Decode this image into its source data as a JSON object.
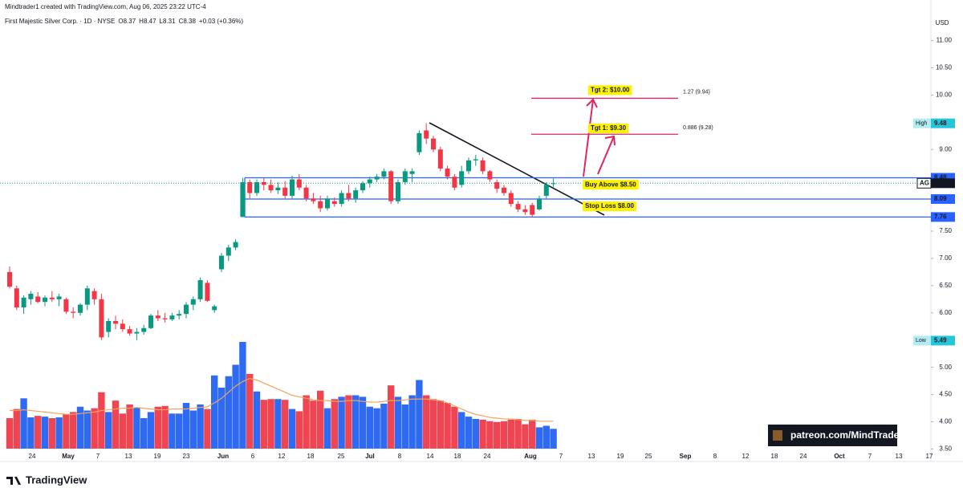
{
  "chart_data": {
    "type": "candlestick",
    "header": "Mindtrader1 created with TradingView.com, Aug 06, 2025 23:22 UTC-4",
    "symbol": "First Majestic Silver Corp. · 1D · NYSE",
    "ohlc_labels": [
      "O",
      "H",
      "L",
      "C"
    ],
    "ohlc": [
      8.37,
      8.47,
      8.31,
      8.38
    ],
    "change": "+0.03 (+0.36%)",
    "currency": "USD",
    "ylim": [
      3.3,
      11.45
    ],
    "yticks": [
      {
        "value": 11,
        "label": "11.00"
      },
      {
        "value": 10.5,
        "label": "10.50"
      },
      {
        "value": 10,
        "label": "10.00"
      },
      {
        "value": 9,
        "label": "9.00"
      },
      {
        "value": 7.5,
        "label": "7.50"
      },
      {
        "value": 7,
        "label": "7.00"
      },
      {
        "value": 6.5,
        "label": "6.50"
      },
      {
        "value": 6,
        "label": "6.00"
      },
      {
        "value": 5,
        "label": "5.00"
      },
      {
        "value": 4.5,
        "label": "4.50"
      },
      {
        "value": 4,
        "label": "4.00"
      },
      {
        "value": 3.5,
        "label": "3.50"
      }
    ],
    "x_labels": [
      "24",
      "May",
      "7",
      "13",
      "19",
      "23",
      "Jun",
      "6",
      "12",
      "18",
      "25",
      "Jul",
      "8",
      "14",
      "18",
      "24",
      "Aug",
      "7",
      "13",
      "19",
      "25",
      "Sep",
      "8",
      "12",
      "18",
      "24",
      "Oct",
      "7",
      "13",
      "17"
    ],
    "up_color": "#089981",
    "down_color": "#f23645",
    "volume_up_color": "#2e6bf2",
    "volume_down_color": "#ef4452",
    "volume_ma_color": "#f5a35c",
    "open": [
      6.75,
      6.45,
      6.1,
      6.25,
      6.3,
      6.2,
      6.28,
      6.25,
      6.25,
      6.02,
      6.0,
      6.15,
      6.4,
      6.25,
      5.65,
      5.85,
      5.8,
      5.7,
      5.62,
      5.65,
      5.72,
      5.95,
      5.9,
      5.88,
      5.95,
      5.98,
      6.15,
      6.25,
      6.55,
      6.05,
      6.8,
      7.05,
      7.2,
      7.76,
      8.4,
      8.2,
      8.4,
      8.35,
      8.25,
      8.3,
      8.15,
      8.45,
      8.3,
      8.1,
      8.05,
      7.92,
      8.05,
      8.0,
      8.2,
      8.1,
      8.25,
      8.38,
      8.45,
      8.5,
      8.6,
      8.05,
      8.4,
      8.55,
      8.95,
      9.35,
      9.2,
      9.0,
      8.65,
      8.5,
      8.35,
      8.6,
      8.8,
      8.8,
      8.6,
      8.4,
      8.3,
      8.2,
      8.0,
      7.9,
      7.98,
      7.9,
      8.15,
      8.37
    ],
    "high": [
      6.85,
      6.5,
      6.32,
      6.4,
      6.38,
      6.32,
      6.4,
      6.35,
      6.28,
      6.1,
      6.18,
      6.5,
      6.45,
      6.35,
      5.9,
      5.95,
      5.88,
      5.76,
      5.72,
      5.78,
      5.98,
      6.05,
      6.0,
      6.0,
      6.05,
      6.2,
      6.3,
      6.65,
      6.6,
      6.15,
      7.1,
      7.25,
      7.35,
      8.48,
      8.45,
      8.45,
      8.48,
      8.45,
      8.4,
      8.42,
      8.52,
      8.55,
      8.35,
      8.2,
      8.15,
      8.15,
      8.12,
      8.25,
      8.35,
      8.3,
      8.42,
      8.5,
      8.55,
      8.65,
      8.62,
      8.45,
      8.65,
      8.65,
      9.35,
      9.48,
      9.25,
      9.05,
      8.7,
      8.55,
      8.7,
      8.85,
      8.9,
      8.85,
      8.62,
      8.45,
      8.35,
      8.25,
      8.05,
      7.98,
      8.02,
      8.15,
      8.4,
      8.47
    ],
    "low": [
      6.45,
      6.05,
      5.98,
      6.15,
      6.18,
      6.12,
      6.2,
      6.12,
      5.98,
      5.9,
      5.95,
      6.05,
      6.15,
      5.5,
      5.55,
      5.7,
      5.65,
      5.58,
      5.5,
      5.6,
      5.7,
      5.85,
      5.82,
      5.85,
      5.88,
      5.9,
      6.05,
      6.2,
      6.2,
      6.0,
      6.75,
      6.95,
      7.15,
      7.76,
      8.1,
      8.15,
      8.25,
      8.2,
      8.18,
      8.1,
      8.1,
      8.25,
      8.05,
      8.0,
      7.85,
      7.88,
      7.95,
      7.95,
      8.05,
      8.02,
      8.2,
      8.3,
      8.4,
      8.45,
      8.0,
      8.0,
      8.35,
      8.4,
      8.9,
      9.1,
      8.95,
      8.6,
      8.45,
      8.25,
      8.3,
      8.55,
      8.7,
      8.55,
      8.4,
      8.2,
      8.15,
      7.95,
      7.85,
      7.8,
      7.76,
      7.88,
      8.1,
      8.31
    ],
    "close": [
      6.48,
      6.1,
      6.28,
      6.35,
      6.2,
      6.28,
      6.25,
      6.3,
      6.02,
      6.0,
      6.15,
      6.45,
      6.25,
      5.55,
      5.85,
      5.8,
      5.7,
      5.62,
      5.65,
      5.72,
      5.95,
      5.9,
      5.88,
      5.95,
      5.98,
      6.15,
      6.25,
      6.6,
      6.22,
      6.12,
      7.05,
      7.2,
      7.3,
      8.4,
      8.2,
      8.4,
      8.35,
      8.25,
      8.3,
      8.15,
      8.45,
      8.3,
      8.1,
      8.05,
      7.92,
      8.1,
      8.0,
      8.2,
      8.1,
      8.25,
      8.38,
      8.45,
      8.5,
      8.6,
      8.05,
      8.4,
      8.6,
      8.6,
      9.3,
      9.2,
      9.0,
      8.65,
      8.5,
      8.3,
      8.6,
      8.8,
      8.82,
      8.6,
      8.45,
      8.28,
      8.2,
      8.0,
      7.9,
      7.85,
      7.8,
      8.1,
      8.35,
      8.38
    ],
    "volume": [
      4.0,
      5.2,
      6.6,
      4.1,
      4.3,
      4.2,
      4.0,
      4.1,
      4.5,
      4.8,
      5.5,
      5.0,
      5.3,
      7.4,
      4.8,
      6.3,
      4.6,
      5.8,
      5.4,
      4.0,
      4.8,
      5.5,
      5.6,
      4.6,
      4.6,
      6.0,
      5.0,
      5.8,
      5.2,
      9.6,
      8.0,
      9.5,
      11.0,
      14.0,
      9.8,
      7.5,
      6.4,
      6.5,
      6.5,
      6.4,
      5.2,
      4.9,
      7.0,
      6.3,
      7.6,
      5.3,
      6.5,
      6.8,
      7.0,
      7.0,
      6.8,
      5.5,
      5.3,
      5.9,
      8.3,
      6.8,
      5.8,
      7.0,
      9.0,
      7.0,
      6.5,
      6.3,
      6.0,
      5.5,
      4.8,
      4.2,
      3.9,
      3.8,
      3.6,
      3.5,
      3.6,
      3.8,
      3.9,
      3.2,
      3.8,
      2.8,
      3.0,
      2.6
    ],
    "volume_ma": [
      5.0,
      5.0,
      5.1,
      5.0,
      4.9,
      4.8,
      4.7,
      4.6,
      4.5,
      4.5,
      4.6,
      4.7,
      4.8,
      5.0,
      5.1,
      5.2,
      5.3,
      5.3,
      5.4,
      5.3,
      5.2,
      5.1,
      5.1,
      5.2,
      5.2,
      5.2,
      5.3,
      5.4,
      5.5,
      6.0,
      6.6,
      7.4,
      8.2,
      8.8,
      9.2,
      9.0,
      8.6,
      8.2,
      7.8,
      7.4,
      7.0,
      6.8,
      6.6,
      6.4,
      6.3,
      6.3,
      6.2,
      6.2,
      6.3,
      6.3,
      6.2,
      6.1,
      6.1,
      6.2,
      6.3,
      6.3,
      6.4,
      6.5,
      6.5,
      6.5,
      6.4,
      6.3,
      6.0,
      5.6,
      5.2,
      4.8,
      4.5,
      4.3,
      4.1,
      4.0,
      3.9,
      3.9,
      3.8,
      3.7,
      3.7,
      3.6,
      3.6,
      3.6
    ],
    "levels": [
      8.48,
      8.09,
      7.76
    ],
    "level_color": "#2962ff",
    "last_price": {
      "ticker": "AG",
      "value": 8.38
    },
    "high_mark": {
      "label": "High",
      "value": 9.48
    },
    "low_mark": {
      "label": "Low",
      "value": 5.49
    },
    "fib_levels": [
      {
        "label": "1.27 (9.94)",
        "value": 9.94
      },
      {
        "label": "0.886 (9.28)",
        "value": 9.28
      }
    ],
    "fib_color": "#e0245e",
    "targets": [
      {
        "label": "Tgt 2: $10.00",
        "value": 10.0
      },
      {
        "label": "Tgt 1: $9.30",
        "value": 9.3
      }
    ],
    "buy": {
      "label": "Buy Above $8.50",
      "value": 8.5
    },
    "stop": {
      "label": "Stop Loss $8.00",
      "value": 8.0
    },
    "watermark": "patreon.com/MindTrader",
    "brand": "TradingView"
  }
}
